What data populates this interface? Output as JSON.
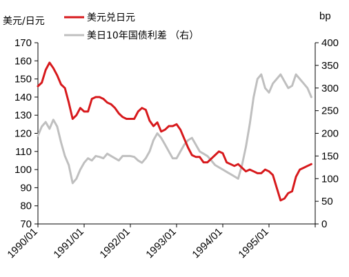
{
  "chart_data": {
    "type": "line",
    "left_axis_label": "美元/日元",
    "right_axis_label": "bp",
    "left_axis": {
      "min": 70,
      "max": 170,
      "ticks": [
        70,
        80,
        90,
        100,
        110,
        120,
        130,
        140,
        150,
        160,
        170
      ]
    },
    "right_axis": {
      "min": 0,
      "max": 400,
      "ticks": [
        0,
        50,
        100,
        150,
        200,
        250,
        300,
        350,
        400
      ]
    },
    "x_tick_labels": [
      "1990/01",
      "1991/01",
      "1992/01",
      "1993/01",
      "1994/01",
      "1995/01"
    ],
    "x_range": [
      "1990/01",
      "1996/01"
    ],
    "legend": [
      {
        "name": "美元兑日元",
        "color": "#d7191c",
        "axis": "left"
      },
      {
        "name": "美日10年国债利差 （右）",
        "color": "#bfbfbf",
        "axis": "right"
      }
    ],
    "series": [
      {
        "name": "美元兑日元",
        "axis": "left",
        "color": "#d7191c",
        "x": [
          "1990/01",
          "1990/02",
          "1990/03",
          "1990/04",
          "1990/05",
          "1990/06",
          "1990/07",
          "1990/08",
          "1990/09",
          "1990/10",
          "1990/11",
          "1990/12",
          "1991/01",
          "1991/02",
          "1991/03",
          "1991/04",
          "1991/05",
          "1991/06",
          "1991/07",
          "1991/08",
          "1991/09",
          "1991/10",
          "1991/11",
          "1991/12",
          "1992/01",
          "1992/02",
          "1992/03",
          "1992/04",
          "1992/05",
          "1992/06",
          "1992/07",
          "1992/08",
          "1992/09",
          "1992/10",
          "1992/11",
          "1992/12",
          "1993/01",
          "1993/02",
          "1993/03",
          "1993/04",
          "1993/05",
          "1993/06",
          "1993/07",
          "1993/08",
          "1993/09",
          "1993/10",
          "1993/11",
          "1993/12",
          "1994/01",
          "1994/02",
          "1994/03",
          "1994/04",
          "1994/05",
          "1994/06",
          "1994/07",
          "1994/08",
          "1994/09",
          "1994/10",
          "1994/11",
          "1994/12",
          "1995/01",
          "1995/02",
          "1995/03",
          "1995/04",
          "1995/05",
          "1995/06",
          "1995/07",
          "1995/08",
          "1995/09",
          "1995/10",
          "1995/11",
          "1995/12"
        ],
        "values": [
          146,
          148,
          155,
          159,
          156,
          152,
          147,
          145,
          137,
          128,
          130,
          134,
          132,
          132,
          139,
          140,
          140,
          139,
          137,
          136,
          134,
          131,
          129,
          128,
          128,
          128,
          132,
          134,
          133,
          127,
          124,
          126,
          121,
          122,
          124,
          124,
          125,
          122,
          117,
          112,
          108,
          107,
          107,
          104,
          104,
          106,
          108,
          110,
          109,
          104,
          103,
          102,
          103,
          101,
          99,
          100,
          99,
          98,
          98,
          100,
          99,
          97,
          90,
          83,
          84,
          87,
          88,
          96,
          100,
          101,
          102,
          103
        ]
      },
      {
        "name": "美日10年国债利差 （右）",
        "axis": "right",
        "color": "#bfbfbf",
        "x": [
          "1990/01",
          "1990/02",
          "1990/03",
          "1990/04",
          "1990/05",
          "1990/06",
          "1990/07",
          "1990/08",
          "1990/09",
          "1990/10",
          "1990/11",
          "1990/12",
          "1991/01",
          "1991/02",
          "1991/03",
          "1991/04",
          "1991/05",
          "1991/06",
          "1991/07",
          "1991/08",
          "1991/09",
          "1991/10",
          "1991/11",
          "1991/12",
          "1992/01",
          "1992/02",
          "1992/03",
          "1992/04",
          "1992/05",
          "1992/06",
          "1992/07",
          "1992/08",
          "1992/09",
          "1992/10",
          "1992/11",
          "1992/12",
          "1993/01",
          "1993/02",
          "1993/03",
          "1993/04",
          "1993/05",
          "1993/06",
          "1993/07",
          "1993/08",
          "1993/09",
          "1993/10",
          "1993/11",
          "1993/12",
          "1994/01",
          "1994/02",
          "1994/03",
          "1994/04",
          "1994/05",
          "1994/06",
          "1994/07",
          "1994/08",
          "1994/09",
          "1994/10",
          "1994/11",
          "1994/12",
          "1995/01",
          "1995/02",
          "1995/03",
          "1995/04",
          "1995/05",
          "1995/06",
          "1995/07",
          "1995/08",
          "1995/09",
          "1995/10",
          "1995/11",
          "1995/12"
        ],
        "values": [
          195,
          215,
          225,
          210,
          230,
          215,
          180,
          150,
          130,
          90,
          100,
          120,
          135,
          145,
          140,
          150,
          148,
          145,
          155,
          150,
          145,
          140,
          150,
          150,
          150,
          148,
          140,
          135,
          145,
          160,
          185,
          200,
          190,
          175,
          160,
          145,
          145,
          160,
          175,
          185,
          190,
          175,
          160,
          155,
          150,
          140,
          130,
          125,
          120,
          115,
          110,
          105,
          100,
          130,
          170,
          220,
          280,
          320,
          330,
          300,
          290,
          310,
          320,
          330,
          315,
          300,
          305,
          330,
          320,
          310,
          300,
          280
        ]
      }
    ]
  }
}
